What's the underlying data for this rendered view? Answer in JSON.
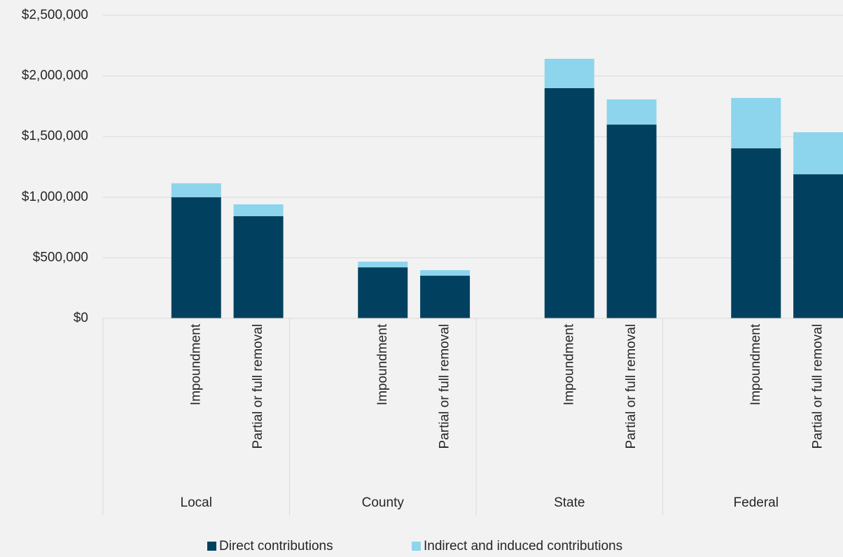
{
  "chart_data": {
    "type": "bar",
    "stacked": true,
    "groups": [
      {
        "name": "Local",
        "categories": [
          "Impoundment",
          "Partial or full removal"
        ]
      },
      {
        "name": "County",
        "categories": [
          "Impoundment",
          "Partial or full removal"
        ]
      },
      {
        "name": "State",
        "categories": [
          "Impoundment",
          "Partial or full removal"
        ]
      },
      {
        "name": "Federal",
        "categories": [
          "Impoundment",
          "Partial or full removal"
        ]
      }
    ],
    "series": [
      {
        "name": "Direct contributions",
        "color": "#01415f",
        "values": [
          1000000,
          843000,
          421000,
          352000,
          1900000,
          1599000,
          1403000,
          1189000
        ]
      },
      {
        "name": "Indirect and induced contributions",
        "color": "#8dd5ec",
        "values": [
          115000,
          98000,
          47000,
          46000,
          242000,
          208000,
          416000,
          347000
        ]
      }
    ],
    "ylim": [
      0,
      2500000
    ],
    "yticks": [
      {
        "value": 0,
        "label": "$0"
      },
      {
        "value": 500000,
        "label": "$500,000"
      },
      {
        "value": 1000000,
        "label": "$1,000,000"
      },
      {
        "value": 1500000,
        "label": "$1,500,000"
      },
      {
        "value": 2000000,
        "label": "$2,000,000"
      },
      {
        "value": 2500000,
        "label": "$2,500,000"
      }
    ],
    "grid": true,
    "legend": "bottom"
  }
}
